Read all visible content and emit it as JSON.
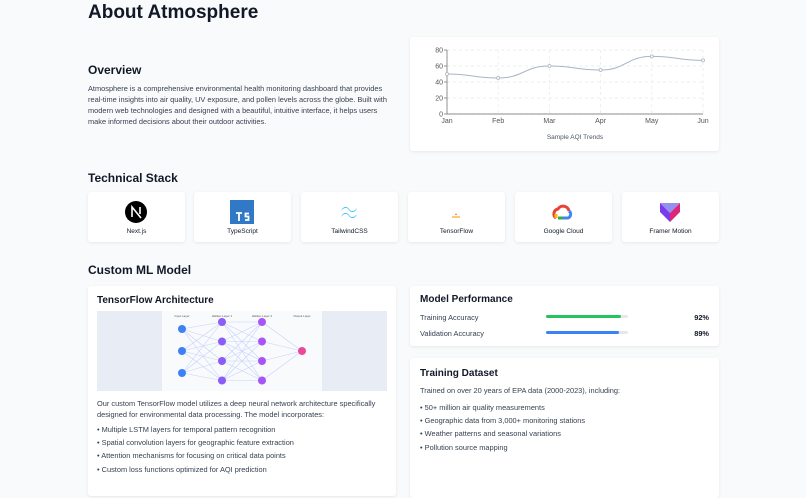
{
  "header": {
    "title": "About Atmosphere"
  },
  "overview": {
    "title": "Overview",
    "text": "Atmosphere is a comprehensive environmental health monitoring dashboard that provides real-time insights into air quality, UV exposure, and pollen levels across the globe. Built with modern web technologies and designed with a beautiful, intuitive interface, it helps users make informed decisions about their outdoor activities."
  },
  "chart_data": {
    "type": "line",
    "title": "Sample AQI Trends",
    "categories": [
      "Jan",
      "Feb",
      "Mar",
      "Apr",
      "May",
      "Jun"
    ],
    "values": [
      50,
      45,
      60,
      55,
      72,
      67
    ],
    "color": "#a9b4c6",
    "ylim": [
      0,
      80
    ],
    "yticks": [
      0,
      20,
      40,
      60,
      80
    ],
    "grid": true
  },
  "tech_stack": {
    "title": "Technical Stack",
    "items": [
      "Next.js",
      "TypeScript",
      "TailwindCSS",
      "TensorFlow",
      "Google Cloud",
      "Framer Motion"
    ]
  },
  "ml": {
    "title": "Custom ML Model",
    "architecture": {
      "title": "TensorFlow Architecture",
      "layers": [
        "Input Layer",
        "Hidden Layer 1",
        "Hidden Layer 2",
        "Output Layer"
      ],
      "text": "Our custom TensorFlow model utilizes a deep neural network architecture specifically designed for environmental data processing. The model incorporates:",
      "points": [
        "• Multiple LSTM layers for temporal pattern recognition",
        "• Spatial convolution layers for geographic feature extraction",
        "• Attention mechanisms for focusing on critical data points",
        "• Custom loss functions optimized for AQI prediction"
      ]
    },
    "performance": {
      "title": "Model Performance",
      "metrics": [
        {
          "label": "Training Accuracy",
          "value": 92,
          "value_label": "92%",
          "color": "#22c55e"
        },
        {
          "label": "Validation Accuracy",
          "value": 89,
          "value_label": "89%",
          "color": "#3b82f6"
        }
      ]
    },
    "dataset": {
      "title": "Training Dataset",
      "text": "Trained on over 20 years of EPA data (2000-2023), including:",
      "points": [
        "• 50+ million air quality measurements",
        "• Geographic data from 3,000+ monitoring stations",
        "• Weather patterns and seasonal variations",
        "• Pollution source mapping"
      ]
    }
  }
}
